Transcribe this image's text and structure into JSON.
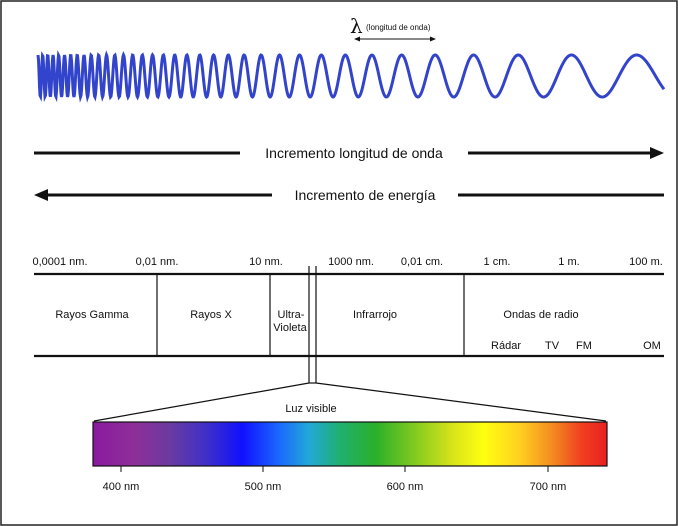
{
  "wavelength_label": {
    "symbol": "λ",
    "text": "(longitud de onda)"
  },
  "arrows": {
    "wavelength_increase": "Incremento longitud de onda",
    "energy_increase": "Incremento de energía"
  },
  "scale_ticks": [
    "0,0001 nm.",
    "0,01 nm.",
    "10 nm.",
    "1000 nm.",
    "0,01 cm.",
    "1 cm.",
    "1 m.",
    "100 m."
  ],
  "bands": {
    "gamma": "Rayos Gamma",
    "x": "Rayos X",
    "uv_line1": "Ultra-",
    "uv_line2": "Violeta",
    "infrared": "Infrarrojo",
    "radio": "Ondas de radio"
  },
  "radio_subbands": [
    "Rádar",
    "TV",
    "FM",
    "OM"
  ],
  "visible": {
    "label": "Luz visible",
    "ticks": [
      "400 nm",
      "500 nm",
      "600 nm",
      "700 nm"
    ]
  },
  "colors": {
    "wave": "#3344cc",
    "line": "#111111"
  }
}
